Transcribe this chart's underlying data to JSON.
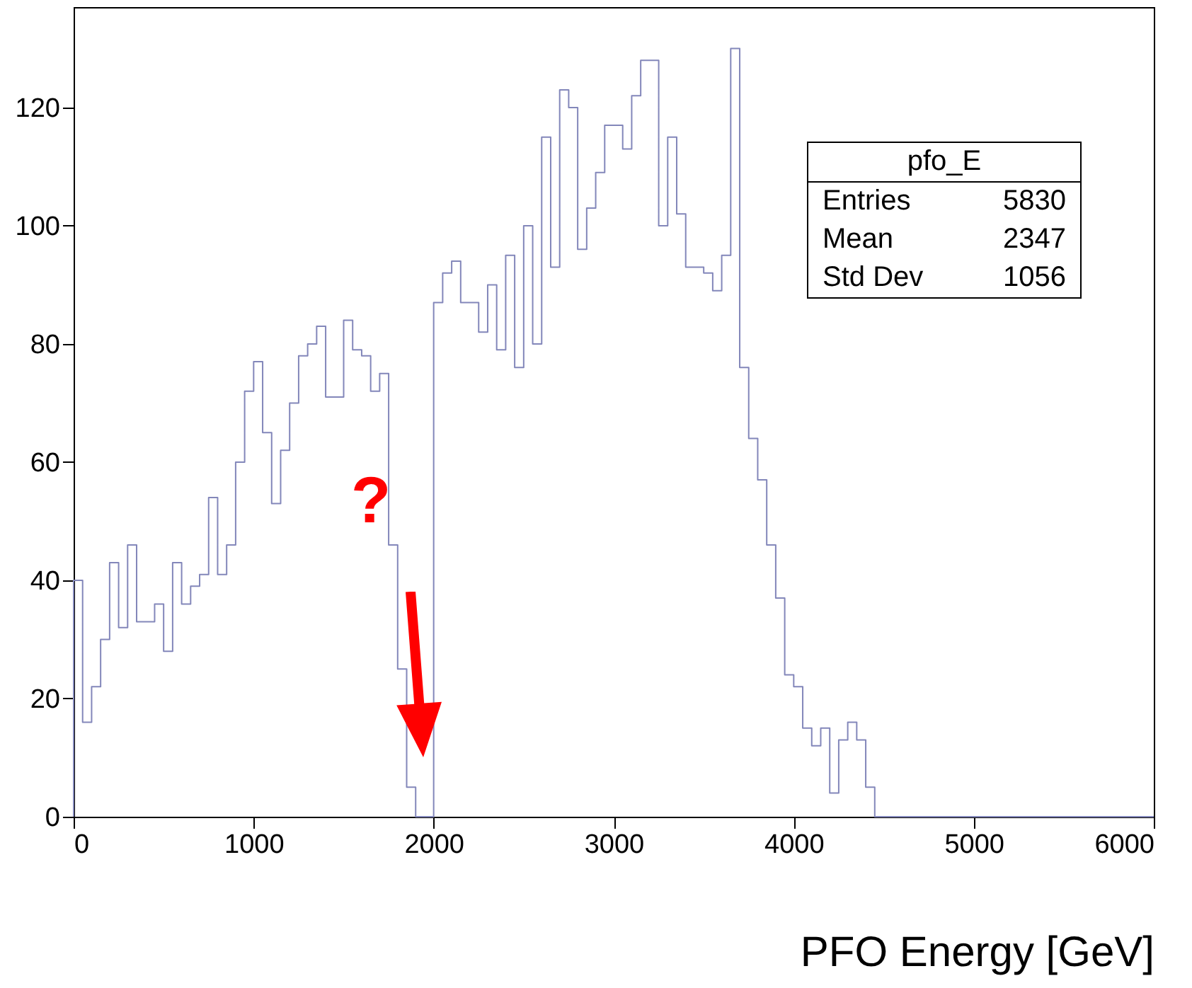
{
  "chart_data": {
    "type": "histogram",
    "xlabel": "PFO Energy [GeV]",
    "color": "#8387ba",
    "grid": false,
    "bins": [
      0,
      50,
      100,
      150,
      200,
      250,
      300,
      350,
      400,
      450,
      500,
      550,
      600,
      650,
      700,
      750,
      800,
      850,
      900,
      950,
      1000,
      1050,
      1100,
      1150,
      1200,
      1250,
      1300,
      1350,
      1400,
      1450,
      1500,
      1550,
      1600,
      1650,
      1700,
      1750,
      1800,
      1850,
      1900,
      1950,
      2000,
      2050,
      2100,
      2150,
      2200,
      2250,
      2300,
      2350,
      2400,
      2450,
      2500,
      2550,
      2600,
      2650,
      2700,
      2750,
      2800,
      2850,
      2900,
      2950,
      3000,
      3050,
      3100,
      3150,
      3200,
      3250,
      3300,
      3350,
      3400,
      3450,
      3500,
      3550,
      3600,
      3650,
      3700,
      3750,
      3800,
      3850,
      3900,
      3950,
      4000,
      4050,
      4100,
      4150,
      4200,
      4250,
      4300,
      4350,
      4400,
      4450,
      4500,
      4550,
      4600,
      4650,
      4700,
      4750,
      4800,
      4850,
      4900,
      4950,
      5000,
      5050,
      5100,
      5150,
      5200,
      5250,
      5300,
      5350,
      5400,
      5450,
      5500,
      5550,
      5600,
      5650,
      5700,
      5750,
      5800,
      5850,
      5900,
      5950,
      6000
    ],
    "values": [
      40,
      16,
      22,
      30,
      43,
      32,
      46,
      33,
      33,
      36,
      28,
      43,
      36,
      39,
      41,
      54,
      41,
      46,
      60,
      72,
      77,
      65,
      53,
      62,
      70,
      78,
      80,
      83,
      71,
      71,
      84,
      79,
      78,
      72,
      75,
      46,
      25,
      5,
      0,
      0,
      87,
      92,
      94,
      87,
      87,
      82,
      90,
      79,
      95,
      76,
      100,
      80,
      115,
      93,
      123,
      120,
      96,
      103,
      109,
      117,
      117,
      113,
      122,
      128,
      128,
      100,
      115,
      102,
      93,
      93,
      92,
      89,
      95,
      130,
      76,
      64,
      57,
      46,
      37,
      24,
      22,
      15,
      12,
      15,
      4,
      13,
      16,
      13,
      5,
      0,
      0,
      0,
      0,
      0,
      0,
      0,
      0,
      0,
      0,
      0,
      0,
      0,
      0,
      0,
      0,
      0,
      0,
      0,
      0,
      0,
      0,
      0,
      0,
      0,
      0,
      0,
      0,
      0,
      0,
      0
    ],
    "xlim": [
      0,
      6000
    ],
    "xticks": [
      0,
      1000,
      2000,
      3000,
      4000,
      5000,
      6000
    ],
    "ylim": [
      0,
      137
    ],
    "yticks": [
      0,
      20,
      40,
      60,
      80,
      100,
      120
    ],
    "annotations": [
      "pfo_E",
      "Entries 5830",
      "Mean 2347",
      "Std Dev 1056",
      "?"
    ]
  }
}
